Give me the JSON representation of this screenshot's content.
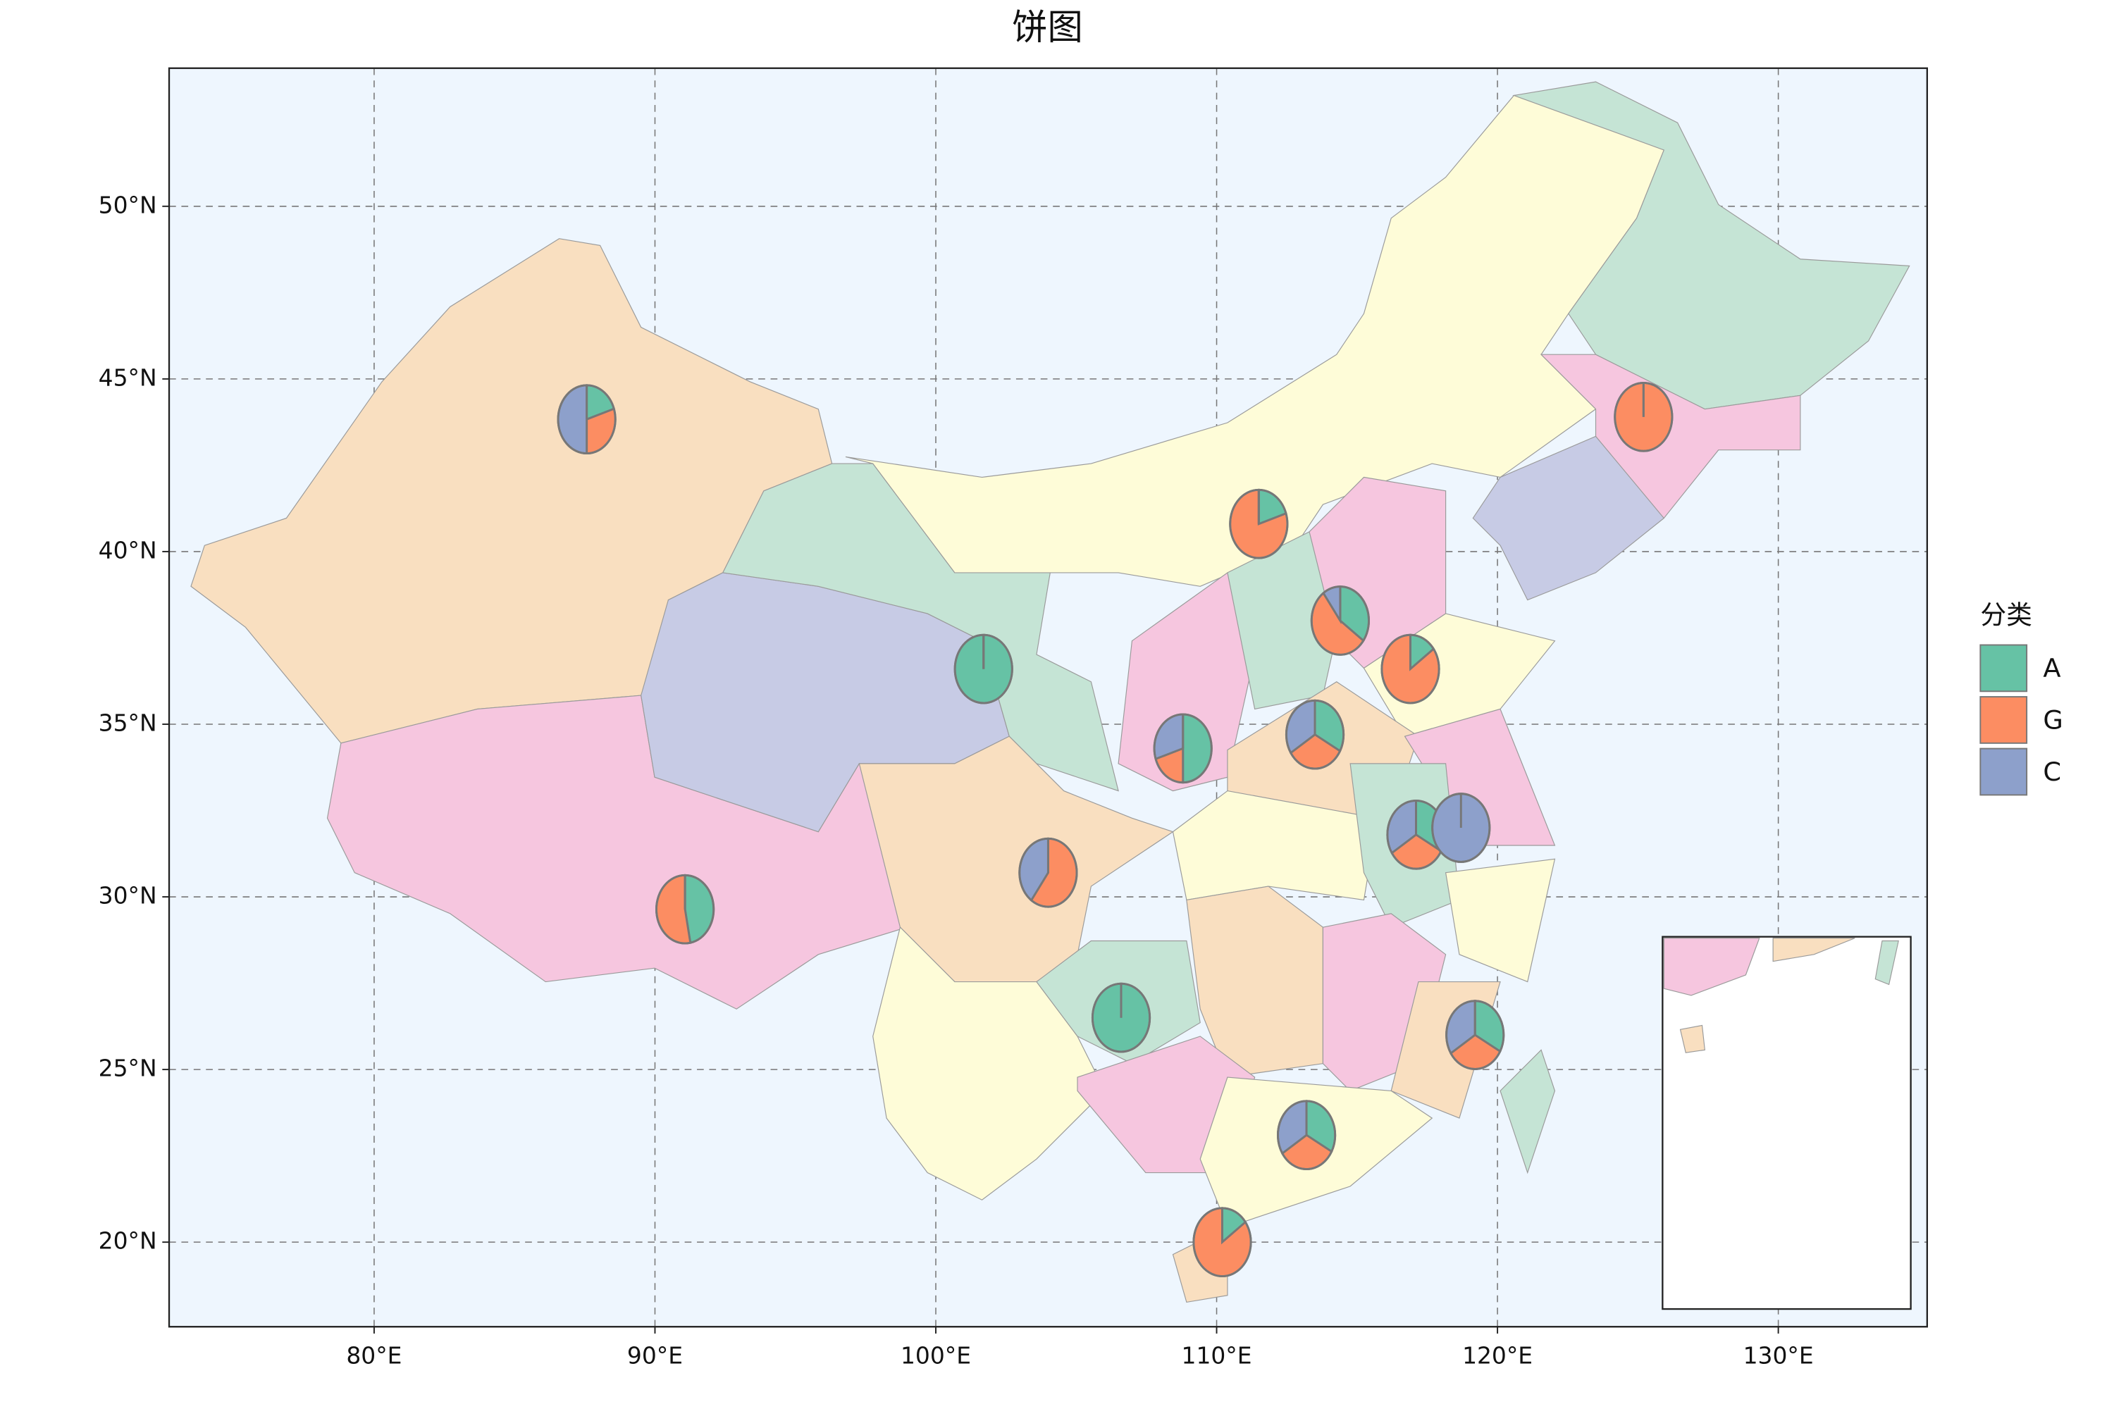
{
  "chart_data": {
    "type": "pie_map",
    "title": "饼图",
    "legend_title": "分类",
    "categories": [
      "A",
      "G",
      "C"
    ],
    "colors": [
      "#66c2a5",
      "#fc8d62",
      "#8da0cb"
    ],
    "xlim": [
      72.7,
      135.3
    ],
    "ylim": [
      17.55,
      54.0
    ],
    "xticks": [
      {
        "value": 80,
        "label": "80°E"
      },
      {
        "value": 90,
        "label": "90°E"
      },
      {
        "value": 100,
        "label": "100°E"
      },
      {
        "value": 110,
        "label": "110°E"
      },
      {
        "value": 120,
        "label": "120°E"
      },
      {
        "value": 130,
        "label": "130°E"
      }
    ],
    "yticks": [
      {
        "value": 20,
        "label": "20°N"
      },
      {
        "value": 25,
        "label": "25°N"
      },
      {
        "value": 30,
        "label": "30°N"
      },
      {
        "value": 35,
        "label": "35°N"
      },
      {
        "value": 40,
        "label": "40°N"
      },
      {
        "value": 45,
        "label": "45°N"
      },
      {
        "value": 50,
        "label": "50°N"
      }
    ],
    "grid": true,
    "points": [
      {
        "x": 87.57,
        "y": 43.83,
        "values": [
          0.2,
          0.3,
          0.5
        ]
      },
      {
        "x": 91.07,
        "y": 29.64,
        "values": [
          0.47,
          0.53,
          0
        ]
      },
      {
        "x": 101.7,
        "y": 36.6,
        "values": [
          1,
          0,
          0
        ]
      },
      {
        "x": 104.0,
        "y": 30.7,
        "values": [
          0,
          0.6,
          0.4
        ]
      },
      {
        "x": 106.6,
        "y": 26.5,
        "values": [
          1,
          0,
          0
        ]
      },
      {
        "x": 108.8,
        "y": 34.3,
        "values": [
          0.5,
          0.2,
          0.3
        ]
      },
      {
        "x": 111.5,
        "y": 40.8,
        "values": [
          0.2,
          0.8,
          0
        ]
      },
      {
        "x": 114.4,
        "y": 38.0,
        "values": [
          0.35,
          0.55,
          0.1
        ]
      },
      {
        "x": 113.5,
        "y": 34.7,
        "values": [
          0.33,
          0.33,
          0.34
        ]
      },
      {
        "x": 116.9,
        "y": 36.6,
        "values": [
          0.15,
          0.85,
          0
        ]
      },
      {
        "x": 117.1,
        "y": 31.8,
        "values": [
          0.33,
          0.33,
          0.34
        ]
      },
      {
        "x": 118.7,
        "y": 32.0,
        "values": [
          0,
          0,
          1
        ]
      },
      {
        "x": 125.2,
        "y": 43.9,
        "values": [
          0,
          1,
          0
        ]
      },
      {
        "x": 119.2,
        "y": 26.0,
        "values": [
          0.33,
          0.33,
          0.34
        ]
      },
      {
        "x": 113.2,
        "y": 23.1,
        "values": [
          0.33,
          0.33,
          0.34
        ]
      },
      {
        "x": 110.2,
        "y": 20.0,
        "values": [
          0.15,
          0.85,
          0
        ]
      }
    ]
  }
}
